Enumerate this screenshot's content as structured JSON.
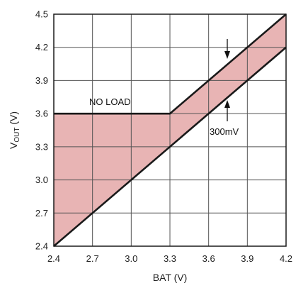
{
  "chart_data": {
    "type": "line",
    "title": "",
    "xlabel": "BAT (V)",
    "ylabel_main": "V",
    "ylabel_sub": "OUT",
    "ylabel_unit": " (V)",
    "xlim": [
      2.4,
      4.2
    ],
    "ylim": [
      2.4,
      4.5
    ],
    "x_ticks": [
      "2.4",
      "2.7",
      "3.0",
      "3.3",
      "3.6",
      "3.9",
      "4.2"
    ],
    "y_ticks": [
      "2.4",
      "2.7",
      "3.0",
      "3.3",
      "3.6",
      "3.9",
      "4.2",
      "4.5"
    ],
    "grid": true,
    "series": [
      {
        "x": [
          2.4,
          3.3,
          4.2
        ],
        "y": [
          3.6,
          3.6,
          4.5
        ]
      },
      {
        "x": [
          2.4,
          4.2
        ],
        "y": [
          2.4,
          4.2
        ]
      }
    ],
    "fill_between": true,
    "annotations": [
      {
        "text": "NO LOAD",
        "x": 2.7,
        "y": 3.6
      },
      {
        "text": "300mV",
        "x": 3.9,
        "y": 3.6
      }
    ],
    "colors": {
      "line": "#1a1a1a",
      "fill": "#e8b4b4",
      "grid": "#555555"
    }
  }
}
